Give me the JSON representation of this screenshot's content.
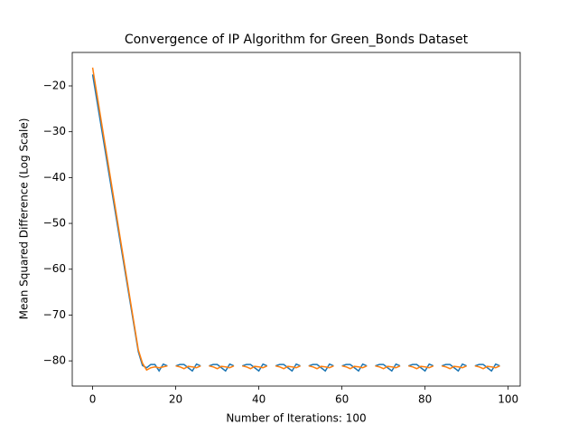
{
  "chart_data": {
    "type": "line",
    "title": "Convergence of IP Algorithm for Green_Bonds Dataset",
    "x_label": "Number of Iterations: 100",
    "y_label": "Mean Squared Difference (Log Scale)",
    "x": [
      0,
      1,
      2,
      3,
      4,
      5,
      6,
      7,
      8,
      9,
      10,
      11,
      12,
      13,
      14,
      15,
      16,
      17,
      18,
      19,
      20,
      21,
      22,
      23,
      24,
      25,
      26,
      27,
      28,
      29,
      30,
      31,
      32,
      33,
      34,
      35,
      36,
      37,
      38,
      39,
      40,
      41,
      42,
      43,
      44,
      45,
      46,
      47,
      48,
      49,
      50,
      51,
      52,
      53,
      54,
      55,
      56,
      57,
      58,
      59,
      60,
      61,
      62,
      63,
      64,
      65,
      66,
      67,
      68,
      69,
      70,
      71,
      72,
      73,
      74,
      75,
      76,
      77,
      78,
      79,
      80,
      81,
      82,
      83,
      84,
      85,
      86,
      87,
      88,
      89,
      90,
      91,
      92,
      93,
      94,
      95,
      96,
      97,
      98
    ],
    "series": [
      {
        "color": "#1f77b4",
        "values": [
          -17.5,
          -23,
          -28.5,
          -34,
          -39.5,
          -45,
          -50.5,
          -56,
          -61.5,
          -67,
          -72.5,
          -78,
          -81,
          -81.5,
          -80.8,
          -80.8,
          -82.2,
          -80.7,
          -81.1,
          null,
          -81.1,
          -80.8,
          -80.8,
          -81.5,
          -82.2,
          -80.7,
          -81.1,
          null,
          -81.1,
          -80.8,
          -80.8,
          -81.5,
          -82.2,
          -80.7,
          -81.1,
          null,
          -81.1,
          -80.8,
          -80.8,
          -81.5,
          -82.2,
          -80.7,
          -81.1,
          null,
          -81.1,
          -80.8,
          -80.8,
          -81.5,
          -82.2,
          -80.7,
          -81.1,
          null,
          -81.1,
          -80.8,
          -80.8,
          -81.5,
          -82.2,
          -80.7,
          -81.1,
          null,
          -81.1,
          -80.8,
          -80.8,
          -81.5,
          -82.2,
          -80.7,
          -81.1,
          null,
          -81.1,
          -80.8,
          -80.8,
          -81.5,
          -82.2,
          -80.7,
          -81.1,
          null,
          -81.1,
          -80.8,
          -80.8,
          -81.5,
          -82.2,
          -80.7,
          -81.1,
          null,
          -81.1,
          -80.8,
          -80.8,
          -81.5,
          -82.2,
          -80.7,
          -81.1,
          null,
          -81.1,
          -80.8,
          -80.8,
          -81.5,
          -82.2,
          -80.7,
          -81.1
        ]
      },
      {
        "color": "#ff7f0e",
        "values": [
          -16,
          -21.6,
          -27.2,
          -32.8,
          -38.4,
          -44,
          -49.6,
          -55.2,
          -60.8,
          -66.4,
          -72,
          -77.6,
          -80.5,
          -82,
          -81.5,
          -81.3,
          -81.5,
          -81.3,
          -81.1,
          null,
          -81.1,
          -81.3,
          -81.7,
          -81.2,
          -81.3,
          -81.5,
          -81.1,
          null,
          -81.1,
          -81.3,
          -81.7,
          -81.2,
          -81.3,
          -81.5,
          -81.1,
          null,
          -81.1,
          -81.3,
          -81.7,
          -81.2,
          -81.3,
          -81.5,
          -81.1,
          null,
          -81.1,
          -81.3,
          -81.7,
          -81.2,
          -81.3,
          -81.5,
          -81.1,
          null,
          -81.1,
          -81.3,
          -81.7,
          -81.2,
          -81.3,
          -81.5,
          -81.1,
          null,
          -81.1,
          -81.3,
          -81.7,
          -81.2,
          -81.3,
          -81.5,
          -81.1,
          null,
          -81.1,
          -81.3,
          -81.7,
          -81.2,
          -81.3,
          -81.5,
          -81.1,
          null,
          -81.1,
          -81.3,
          -81.7,
          -81.2,
          -81.3,
          -81.5,
          -81.1,
          null,
          -81.1,
          -81.3,
          -81.7,
          -81.2,
          -81.3,
          -81.5,
          -81.1,
          null,
          -81.1,
          -81.3,
          -81.7,
          -81.2,
          -81.3,
          -81.5,
          -81.1
        ]
      }
    ],
    "xlim": [
      -4.9,
      102.9
    ],
    "xticks": [
      0,
      20,
      40,
      60,
      80,
      100
    ],
    "ylim": [
      -85.5,
      -12.7
    ],
    "yticks": [
      {
        "value": -80,
        "label": "−80"
      },
      {
        "value": -70,
        "label": "−70"
      },
      {
        "value": -60,
        "label": "−60"
      },
      {
        "value": -50,
        "label": "−50"
      },
      {
        "value": -40,
        "label": "−40"
      },
      {
        "value": -30,
        "label": "−30"
      },
      {
        "value": -20,
        "label": "−20"
      }
    ],
    "grid": false
  }
}
